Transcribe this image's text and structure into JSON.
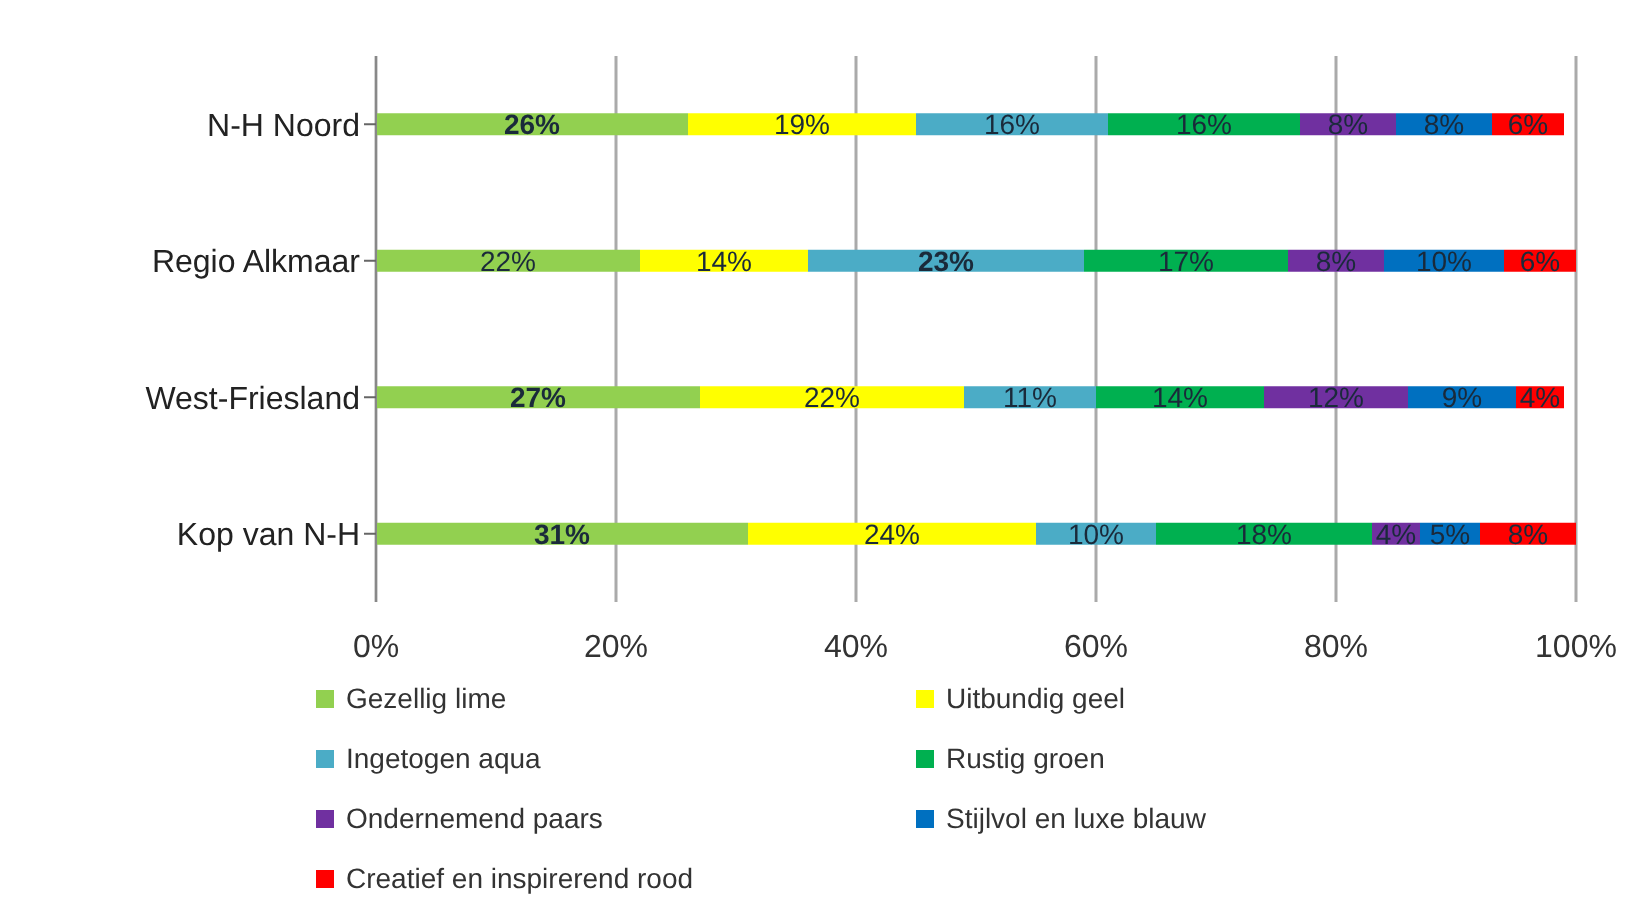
{
  "chart_data": {
    "type": "bar",
    "orientation": "horizontal",
    "stacked": true,
    "categories": [
      "N-H Noord",
      "Regio Alkmaar",
      "West-Friesland",
      "Kop van N-H"
    ],
    "series": [
      {
        "name": "Gezellig lime",
        "color": "#92d050",
        "values": [
          26,
          22,
          27,
          31
        ],
        "value_labels": [
          "26%",
          "22%",
          "27%",
          "31%"
        ]
      },
      {
        "name": "Uitbundig geel",
        "color": "#ffff00",
        "values": [
          19,
          14,
          22,
          24
        ],
        "value_labels": [
          "19%",
          "14%",
          "22%",
          "24%"
        ]
      },
      {
        "name": "Ingetogen aqua",
        "color": "#4bacc6",
        "values": [
          16,
          23,
          11,
          10
        ],
        "value_labels": [
          "16%",
          "23%",
          "11%",
          "10%"
        ]
      },
      {
        "name": "Rustig groen",
        "color": "#00b050",
        "values": [
          16,
          17,
          14,
          18
        ],
        "value_labels": [
          "16%",
          "17%",
          "14%",
          "18%"
        ]
      },
      {
        "name": "Ondernemend paars",
        "color": "#7030a0",
        "values": [
          8,
          8,
          12,
          4
        ],
        "value_labels": [
          "8%",
          "8%",
          "12%",
          "4%"
        ]
      },
      {
        "name": "Stijlvol en luxe blauw",
        "color": "#0070c0",
        "values": [
          8,
          10,
          9,
          5
        ],
        "value_labels": [
          "8%",
          "10%",
          "9%",
          "5%"
        ]
      },
      {
        "name": "Creatief en inspirerend rood",
        "color": "#ff0000",
        "values": [
          6,
          6,
          4,
          8
        ],
        "value_labels": [
          "6%",
          "6%",
          "4%",
          "8%"
        ]
      }
    ],
    "xlim": [
      0,
      100
    ],
    "xticks": [
      {
        "value": 0,
        "label": "0%"
      },
      {
        "value": 20,
        "label": "20%"
      },
      {
        "value": 40,
        "label": "40%"
      },
      {
        "value": 60,
        "label": "60%"
      },
      {
        "value": 80,
        "label": "80%"
      },
      {
        "value": 100,
        "label": "100%"
      }
    ],
    "grid": "x",
    "legend": "bottom"
  }
}
